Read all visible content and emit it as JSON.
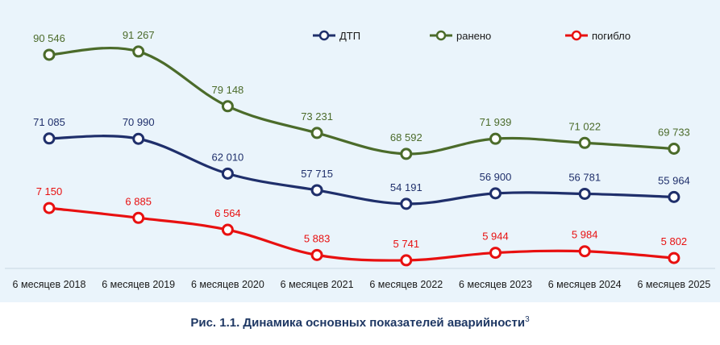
{
  "chart_data": {
    "type": "line",
    "categories": [
      "6 месяцев 2018",
      "6 месяцев 2019",
      "6 месяцев 2020",
      "6 месяцев 2021",
      "6 месяцев 2022",
      "6 месяцев 2023",
      "6 месяцев 2024",
      "6 месяцев 2025"
    ],
    "series": [
      {
        "name": "ДТП",
        "color": "#1f2f6b",
        "values": [
          71085,
          70990,
          62010,
          57715,
          54191,
          56900,
          56781,
          55964
        ],
        "labels": [
          "71 085",
          "70 990",
          "62 010",
          "57 715",
          "54 191",
          "56 900",
          "56 781",
          "55 964"
        ]
      },
      {
        "name": "ранено",
        "color": "#4b6b2a",
        "values": [
          90546,
          91267,
          79148,
          73231,
          68592,
          71939,
          71022,
          69733
        ],
        "labels": [
          "90 546",
          "91 267",
          "79 148",
          "73 231",
          "68 592",
          "71 939",
          "71 022",
          "69 733"
        ]
      },
      {
        "name": "погибло",
        "color": "#e81010",
        "values": [
          7150,
          6885,
          6564,
          5883,
          5741,
          5944,
          5984,
          5802
        ],
        "labels": [
          "7 150",
          "6 885",
          "6 564",
          "5 883",
          "5 741",
          "5 944",
          "5 984",
          "5 802"
        ]
      }
    ],
    "legend_position": "top-right",
    "grid": false
  },
  "caption": {
    "text": "Рис. 1.1. Динамика основных показателей аварийности",
    "footnote": "3"
  }
}
